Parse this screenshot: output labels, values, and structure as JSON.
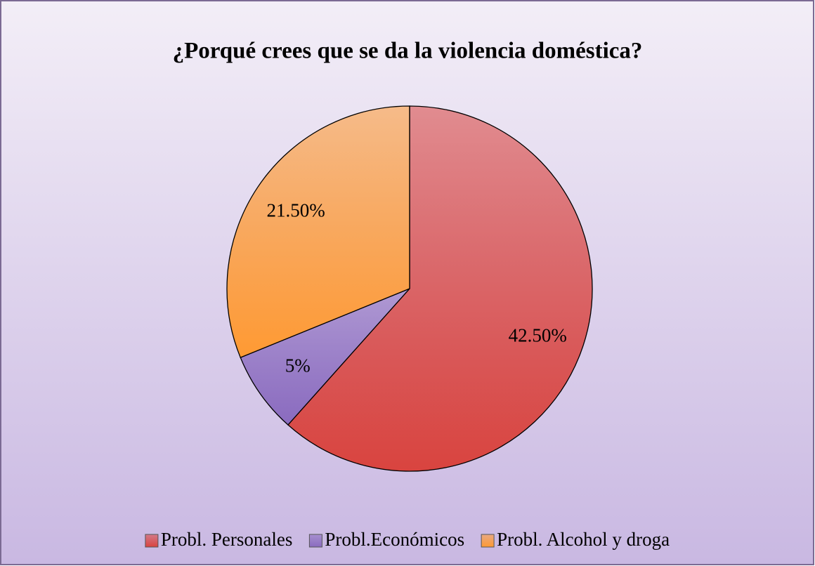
{
  "chart_data": {
    "type": "pie",
    "title": "¿Porqué crees que se da la violencia doméstica?",
    "categories": [
      "Probl. Personales",
      "Probl.Económicos",
      "Probl. Alcohol y droga"
    ],
    "values": [
      42.5,
      5,
      21.5
    ],
    "value_labels": [
      "42.50%",
      "5%",
      "21.50%"
    ],
    "colors": [
      "#d9443f",
      "#8a6bbf",
      "#ff9a33"
    ],
    "legend": "bottom"
  }
}
